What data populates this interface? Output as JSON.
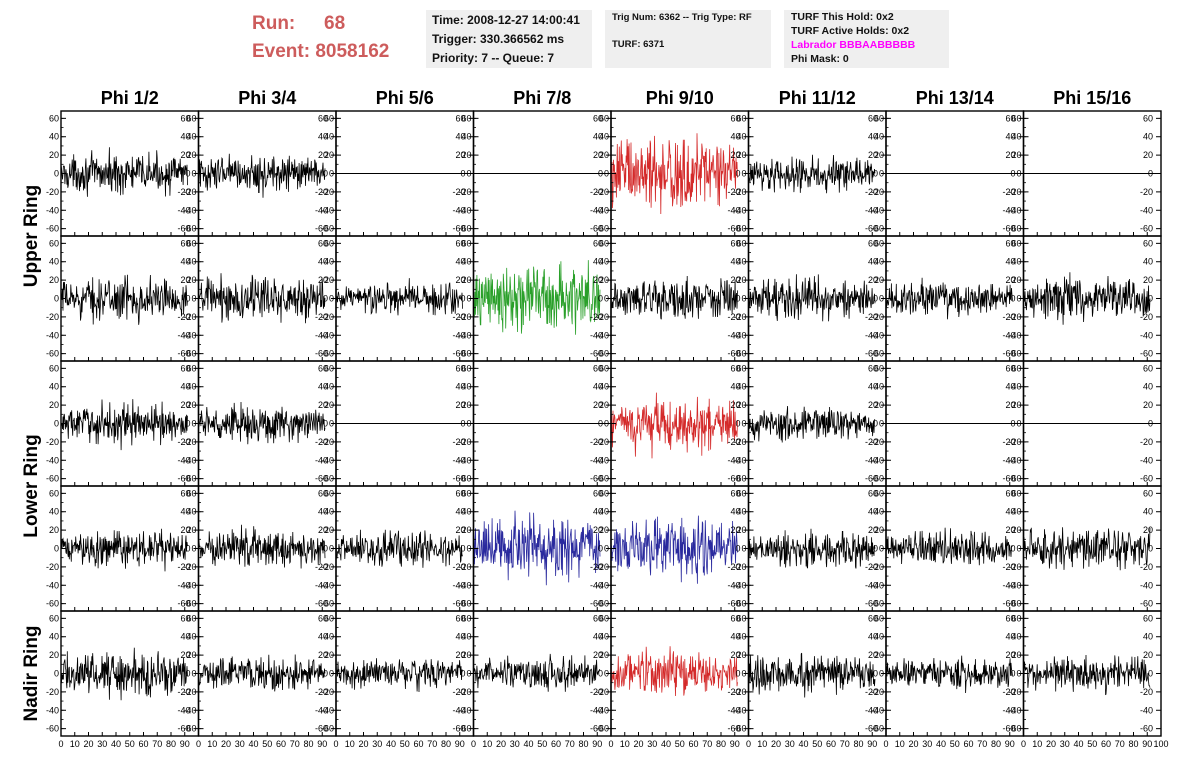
{
  "header": {
    "run_label": "Run:",
    "run_value": "68",
    "event_label": "Event:",
    "event_value": "8058162",
    "time": "Time: 2008-12-27 14:00:41",
    "trigger": "Trigger: 330.366562 ms",
    "priority": "Priority: 7 -- Queue: 7",
    "trig_num": "Trig Num: 6362 -- Trig Type: RF",
    "turf": "TURF: 6371",
    "turf_this_hold": "TURF This Hold: 0x2",
    "turf_active_holds": "TURF Active Holds: 0x2",
    "labrador": "Labrador BBBAABBBBB",
    "phi_mask": "Phi Mask: 0"
  },
  "colors": {
    "run_text": "#cd5c5c",
    "labrador_text": "#ff00ff",
    "trace_default": "#000000",
    "trace_red": "#d42a2a",
    "trace_green": "#2aa02a",
    "trace_blue": "#2a2a9e",
    "info_box_bg": "#efefef"
  },
  "chart_data": {
    "type": "line",
    "columns": [
      "Phi 1/2",
      "Phi 3/4",
      "Phi 5/6",
      "Phi 7/8",
      "Phi 9/10",
      "Phi 11/12",
      "Phi 13/14",
      "Phi 15/16"
    ],
    "ring_labels": [
      "Upper Ring",
      "Lower Ring",
      "Nadir Ring"
    ],
    "xlim": [
      0,
      100
    ],
    "ylim": [
      -68,
      68
    ],
    "yticks": [
      -60,
      -40,
      -20,
      0,
      20,
      40,
      60
    ],
    "xticks": [
      0,
      10,
      20,
      30,
      40,
      50,
      60,
      70,
      80,
      90,
      100
    ],
    "trace_x_range": [
      0,
      92
    ],
    "rows": [
      {
        "ring": "Upper Ring",
        "panels": [
          {
            "amp": 14,
            "color": "default",
            "flat": false
          },
          {
            "amp": 13,
            "color": "default",
            "flat": false
          },
          {
            "amp": 0,
            "color": "default",
            "flat": true
          },
          {
            "amp": 0,
            "color": "default",
            "flat": true
          },
          {
            "amp": 27,
            "color": "red",
            "flat": false
          },
          {
            "amp": 12,
            "color": "default",
            "flat": false
          },
          {
            "amp": 0,
            "color": "default",
            "flat": true
          },
          {
            "amp": 0,
            "color": "default",
            "flat": true
          }
        ]
      },
      {
        "ring": "Upper Ring",
        "panels": [
          {
            "amp": 15,
            "color": "default",
            "flat": false
          },
          {
            "amp": 16,
            "color": "default",
            "flat": false
          },
          {
            "amp": 12,
            "color": "default",
            "flat": false
          },
          {
            "amp": 24,
            "color": "green",
            "flat": false
          },
          {
            "amp": 15,
            "color": "default",
            "flat": false
          },
          {
            "amp": 14,
            "color": "default",
            "flat": false
          },
          {
            "amp": 12,
            "color": "default",
            "flat": false
          },
          {
            "amp": 15,
            "color": "default",
            "flat": false
          }
        ]
      },
      {
        "ring": "Lower Ring",
        "panels": [
          {
            "amp": 14,
            "color": "default",
            "flat": false
          },
          {
            "amp": 13,
            "color": "default",
            "flat": false
          },
          {
            "amp": 0,
            "color": "default",
            "flat": true
          },
          {
            "amp": 0,
            "color": "default",
            "flat": true
          },
          {
            "amp": 19,
            "color": "red",
            "flat": false
          },
          {
            "amp": 12,
            "color": "default",
            "flat": false
          },
          {
            "amp": 0,
            "color": "default",
            "flat": true
          },
          {
            "amp": 0,
            "color": "default",
            "flat": true
          }
        ]
      },
      {
        "ring": "Lower Ring",
        "panels": [
          {
            "amp": 13,
            "color": "default",
            "flat": false
          },
          {
            "amp": 14,
            "color": "default",
            "flat": false
          },
          {
            "amp": 12,
            "color": "default",
            "flat": false
          },
          {
            "amp": 23,
            "color": "blue",
            "flat": false
          },
          {
            "amp": 22,
            "color": "blue",
            "flat": false
          },
          {
            "amp": 13,
            "color": "default",
            "flat": false
          },
          {
            "amp": 12,
            "color": "default",
            "flat": false
          },
          {
            "amp": 15,
            "color": "default",
            "flat": false
          }
        ]
      },
      {
        "ring": "Nadir Ring",
        "panels": [
          {
            "amp": 16,
            "color": "default",
            "flat": false
          },
          {
            "amp": 12,
            "color": "default",
            "flat": false
          },
          {
            "amp": 11,
            "color": "default",
            "flat": false
          },
          {
            "amp": 12,
            "color": "default",
            "flat": false
          },
          {
            "amp": 16,
            "color": "red",
            "flat": false
          },
          {
            "amp": 15,
            "color": "default",
            "flat": false
          },
          {
            "amp": 11,
            "color": "default",
            "flat": false
          },
          {
            "amp": 13,
            "color": "default",
            "flat": false
          }
        ]
      }
    ]
  }
}
